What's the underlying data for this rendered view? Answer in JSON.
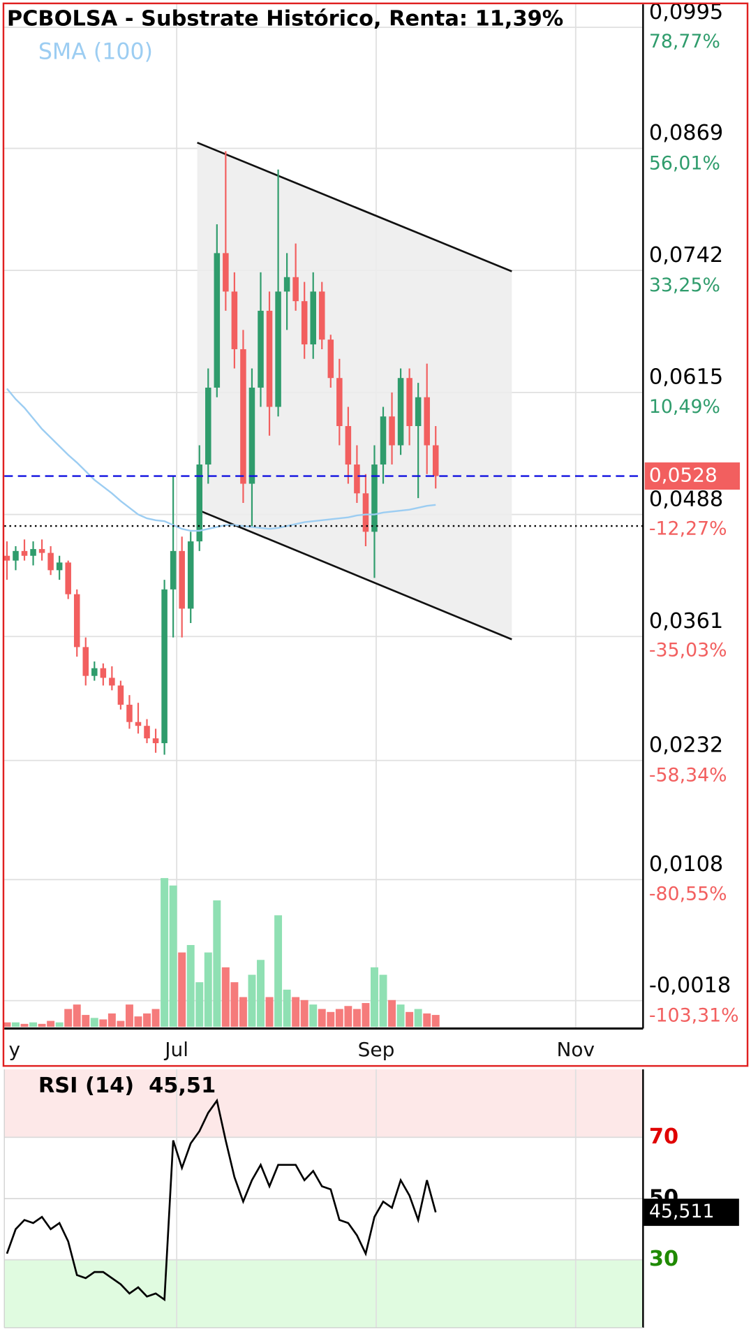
{
  "chart_data": [
    {
      "type": "candlestick",
      "title": "PCBOLSA - Substrate Histórico, Renta: 11,39%",
      "overlay_label": "SMA (100)",
      "open": [
        0.0445,
        0.044,
        0.045,
        0.0445,
        0.0452,
        0.0448,
        0.043,
        0.0438,
        0.0405,
        0.035,
        0.032,
        0.0328,
        0.0318,
        0.031,
        0.029,
        0.0272,
        0.0268,
        0.0255,
        0.025,
        0.041,
        0.045,
        0.039,
        0.046,
        0.054,
        0.062,
        0.076,
        0.072,
        0.066,
        0.052,
        0.062,
        0.07,
        0.06,
        0.072,
        0.0735,
        0.071,
        0.0665,
        0.072,
        0.067,
        0.063,
        0.058,
        0.054,
        0.051,
        0.047,
        0.054,
        0.059,
        0.056,
        0.063,
        0.058,
        0.061,
        0.056
      ],
      "high": [
        0.046,
        0.0455,
        0.0462,
        0.046,
        0.0462,
        0.0455,
        0.0445,
        0.044,
        0.041,
        0.036,
        0.0335,
        0.0333,
        0.033,
        0.0315,
        0.03,
        0.0292,
        0.0275,
        0.0265,
        0.042,
        0.0528,
        0.0465,
        0.047,
        0.056,
        0.064,
        0.079,
        0.0866,
        0.074,
        0.068,
        0.064,
        0.074,
        0.072,
        0.0847,
        0.076,
        0.077,
        0.073,
        0.074,
        0.073,
        0.0675,
        0.065,
        0.06,
        0.056,
        0.053,
        0.056,
        0.06,
        0.0615,
        0.064,
        0.064,
        0.0625,
        0.0645,
        0.058
      ],
      "low": [
        0.042,
        0.043,
        0.044,
        0.0435,
        0.044,
        0.0425,
        0.042,
        0.04,
        0.034,
        0.031,
        0.0315,
        0.031,
        0.0305,
        0.0285,
        0.0265,
        0.026,
        0.025,
        0.024,
        0.0238,
        0.036,
        0.036,
        0.0375,
        0.045,
        0.052,
        0.061,
        0.07,
        0.064,
        0.05,
        0.0475,
        0.06,
        0.057,
        0.059,
        0.068,
        0.07,
        0.065,
        0.065,
        0.066,
        0.062,
        0.056,
        0.052,
        0.05,
        0.0455,
        0.0422,
        0.052,
        0.054,
        0.055,
        0.056,
        0.0505,
        0.053,
        0.0515
      ],
      "close": [
        0.044,
        0.045,
        0.0445,
        0.0452,
        0.0448,
        0.043,
        0.0438,
        0.0405,
        0.035,
        0.032,
        0.0328,
        0.0318,
        0.031,
        0.029,
        0.0272,
        0.0268,
        0.0255,
        0.025,
        0.041,
        0.045,
        0.039,
        0.046,
        0.054,
        0.062,
        0.076,
        0.072,
        0.066,
        0.052,
        0.062,
        0.07,
        0.06,
        0.072,
        0.0735,
        0.071,
        0.0665,
        0.072,
        0.067,
        0.063,
        0.058,
        0.054,
        0.051,
        0.047,
        0.054,
        0.059,
        0.056,
        0.063,
        0.058,
        0.061,
        0.056,
        0.0528
      ],
      "volume": [
        3,
        3,
        2,
        3,
        2,
        4,
        3,
        12,
        15,
        8,
        6,
        5,
        9,
        4,
        15,
        7,
        9,
        12,
        100,
        95,
        50,
        55,
        30,
        50,
        85,
        40,
        30,
        20,
        35,
        45,
        20,
        75,
        25,
        20,
        18,
        15,
        12,
        10,
        12,
        14,
        12,
        16,
        40,
        35,
        18,
        15,
        10,
        12,
        9,
        8
      ],
      "volume_lim": [
        0,
        100
      ],
      "sma": [
        0.0619,
        0.0608,
        0.0599,
        0.0588,
        0.0577,
        0.0568,
        0.0559,
        0.055,
        0.0542,
        0.0533,
        0.0524,
        0.0517,
        0.051,
        0.0502,
        0.0495,
        0.0488,
        0.0484,
        0.0482,
        0.0481,
        0.0477,
        0.0473,
        0.0471,
        0.0471,
        0.0473,
        0.0475,
        0.0477,
        0.0477,
        0.0476,
        0.0475,
        0.0474,
        0.0473,
        0.0474,
        0.0476,
        0.0478,
        0.048,
        0.0481,
        0.0482,
        0.0483,
        0.0484,
        0.0485,
        0.0487,
        0.0488,
        0.0488,
        0.049,
        0.0491,
        0.0492,
        0.0493,
        0.0495,
        0.0497,
        0.0498
      ],
      "channel": {
        "x": [
          21.75,
          57.7
        ],
        "upper": [
          0.0875,
          0.0741
        ],
        "lower": [
          0.0493,
          0.0358
        ]
      },
      "last_value": {
        "value": 0.0528,
        "label": "0,0528"
      },
      "reference_level": 0.0476,
      "xlim": [
        -0.3,
        72.7
      ],
      "xticks": [
        {
          "value": 0.2,
          "label": "y"
        },
        {
          "value": 19.4,
          "label": "Jul"
        },
        {
          "value": 42.2,
          "label": "Sep"
        },
        {
          "value": 65.0,
          "label": "Nov"
        }
      ],
      "ylim": [
        -0.0047,
        0.1019
      ],
      "yticks": [
        {
          "value": 0.0995,
          "label": "0,0995"
        },
        {
          "value": 0.0869,
          "label": "0,0869"
        },
        {
          "value": 0.0742,
          "label": "0,0742"
        },
        {
          "value": 0.0615,
          "label": "0,0615"
        },
        {
          "value": 0.0488,
          "label": "0,0488"
        },
        {
          "value": 0.0361,
          "label": "0,0361"
        },
        {
          "value": 0.0232,
          "label": "0,0232"
        },
        {
          "value": 0.0108,
          "label": "0,0108"
        },
        {
          "value": -0.0018,
          "label": "-0,0018"
        }
      ],
      "y2lim": [
        -108.44,
        83.04
      ],
      "y2ticks": [
        {
          "value": 78.77,
          "label": "78,77%"
        },
        {
          "value": 56.01,
          "label": "56,01%"
        },
        {
          "value": 33.25,
          "label": "33,25%"
        },
        {
          "value": 10.49,
          "label": "10,49%"
        },
        {
          "value": -12.27,
          "label": "-12,27%"
        },
        {
          "value": -35.03,
          "label": "-35,03%"
        },
        {
          "value": -58.34,
          "label": "-58,34%"
        },
        {
          "value": -80.55,
          "label": "-80,55%"
        },
        {
          "value": -103.31,
          "label": "-103,31%"
        }
      ],
      "up_color": "#2f9c6c",
      "down_color": "#f25f5f",
      "volume_up_color": "#8fe0b3",
      "volume_down_color": "#f57b7b",
      "sma_color": "#9ccdf2",
      "grid": true
    },
    {
      "type": "line",
      "title": "RSI (14)",
      "header_value": {
        "value": 45.51,
        "label": "45,51"
      },
      "current": {
        "value": 45.511,
        "label": "45,511"
      },
      "values": [
        32,
        40,
        43,
        42,
        44,
        40,
        42,
        36,
        25,
        24,
        26,
        26,
        24,
        22,
        19,
        21,
        18,
        19,
        17,
        69,
        60,
        68,
        72,
        78,
        82,
        69,
        57,
        49,
        56,
        61,
        54,
        61,
        61,
        61,
        56,
        59,
        54,
        53,
        43,
        42,
        38,
        32,
        44,
        49,
        47,
        56,
        51,
        43,
        56,
        45.511
      ],
      "xlim": [
        -0.3,
        72.7
      ],
      "xticks": [
        19.4,
        42.2,
        65.0
      ],
      "ylim": [
        7.8,
        92.2
      ],
      "yticks": [
        70,
        50,
        30
      ],
      "ytick_colors": [
        "#e00000",
        "#000000",
        "#1f8a00"
      ],
      "color": "#000000",
      "grid": true
    }
  ]
}
